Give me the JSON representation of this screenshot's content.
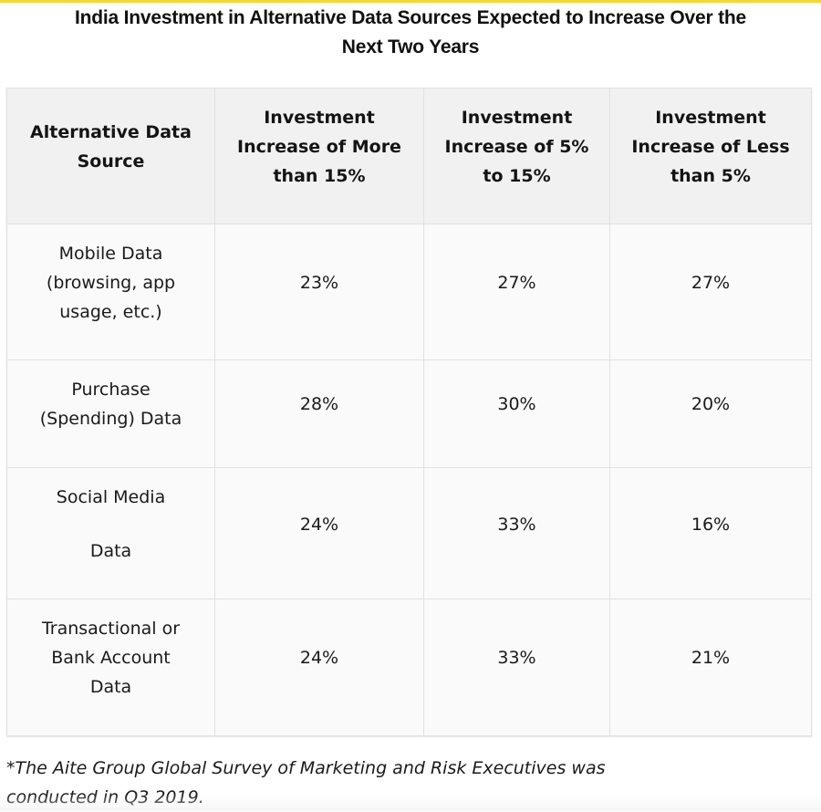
{
  "accent_color": "#f1d53c",
  "title": {
    "line1": "India Investment in Alternative Data Sources Expected to Increase Over the",
    "line2": "Next Two Years"
  },
  "table": {
    "headers": [
      {
        "lines": [
          "Alternative Data",
          "Source"
        ]
      },
      {
        "lines": [
          "Investment",
          "Increase of More",
          "than 15%"
        ]
      },
      {
        "lines": [
          "Investment",
          "Increase of 5%",
          "to 15%"
        ]
      },
      {
        "lines": [
          "Investment",
          "Increase of Less",
          "than 5%"
        ]
      }
    ],
    "rows": [
      {
        "source_lines": [
          "Mobile Data",
          "(browsing, app",
          "usage, etc.)"
        ],
        "values": [
          "23%",
          "27%",
          "27%"
        ]
      },
      {
        "source_lines": [
          "Purchase",
          "(Spending) Data"
        ],
        "values": [
          "28%",
          "30%",
          "20%"
        ]
      },
      {
        "source_lines": [
          "Social Media",
          "Data"
        ],
        "values": [
          "24%",
          "33%",
          "16%"
        ]
      },
      {
        "source_lines": [
          "Transactional or",
          "Bank Account",
          "Data"
        ],
        "values": [
          "24%",
          "33%",
          "21%"
        ]
      }
    ]
  },
  "footnote": {
    "line1": "*The Aite Group Global Survey of Marketing and Risk Executives was",
    "line2": "conducted in Q3 2019."
  }
}
